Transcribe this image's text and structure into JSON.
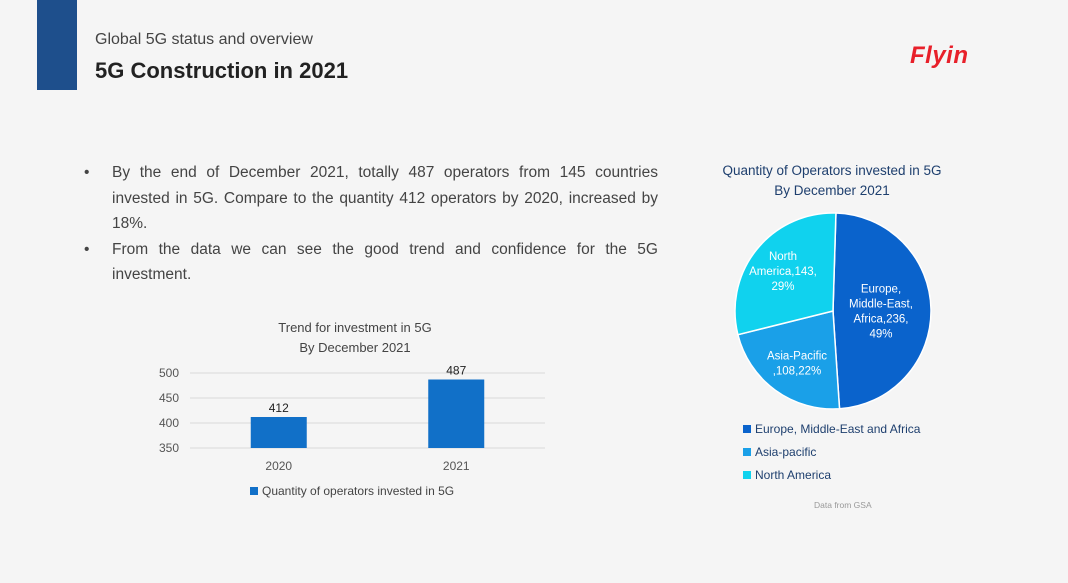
{
  "header": {
    "subtitle": "Global 5G status and overview",
    "title": "5G Construction in 2021",
    "logo_text": "Flyin",
    "accent_color": "#1e4f8c",
    "logo_color": "#e8202a"
  },
  "bullets": [
    "By the end of December 2021, totally 487 operators from 145 countries invested in 5G. Compare to the quantity 412 operators by 2020, increased by 18%.",
    "From the data we can see the good trend and confidence for the 5G investment."
  ],
  "bullet_marker": "•",
  "chart_data": [
    {
      "type": "bar",
      "title_lines": [
        "Trend for investment in 5G",
        "By December 2021"
      ],
      "categories": [
        "2020",
        "2021"
      ],
      "series": [
        {
          "name": "Quantity of operators invested in 5G",
          "values": [
            412,
            487
          ],
          "color": "#1170c8"
        }
      ],
      "data_labels": [
        "412",
        "487"
      ],
      "y_ticks": [
        "350",
        "400",
        "450",
        "500"
      ],
      "ylim": [
        350,
        500
      ],
      "grid": true,
      "legend": "bottom"
    },
    {
      "type": "pie",
      "title_lines": [
        "Quantity of Operators invested in 5G",
        "By December 2021"
      ],
      "slices": [
        {
          "name": "Europe, Middle-East and Africa",
          "value": 236,
          "percent": 49,
          "color": "#0a63cc",
          "label_lines": [
            "Europe,",
            "Middle-East,",
            "Africa,236,",
            "49%"
          ]
        },
        {
          "name": "Asia-pacific",
          "value": 108,
          "percent": 22,
          "color": "#1aa0e8",
          "label_lines": [
            "Asia-Pacific",
            ",108,22%"
          ]
        },
        {
          "name": "North America",
          "value": 143,
          "percent": 29,
          "color": "#10d2ee",
          "label_lines": [
            "North",
            "America,143,",
            "29%"
          ]
        }
      ],
      "legend": "bottom"
    }
  ],
  "source_note": "Data from GSA"
}
